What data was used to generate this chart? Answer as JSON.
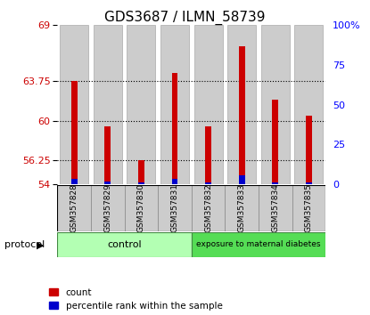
{
  "title": "GDS3687 / ILMN_58739",
  "samples": [
    "GSM357828",
    "GSM357829",
    "GSM357830",
    "GSM357831",
    "GSM357832",
    "GSM357833",
    "GSM357834",
    "GSM357835"
  ],
  "red_values": [
    63.75,
    59.5,
    56.25,
    64.5,
    59.5,
    67.0,
    62.0,
    60.5
  ],
  "blue_values": [
    54.5,
    54.3,
    54.2,
    54.5,
    54.2,
    54.85,
    54.2,
    54.2
  ],
  "base_value": 54.0,
  "ylim_left": [
    54,
    69
  ],
  "ylim_right": [
    0,
    100
  ],
  "yticks_left": [
    54,
    56.25,
    60,
    63.75,
    69
  ],
  "yticks_right": [
    0,
    25,
    50,
    75,
    100
  ],
  "ytick_labels_left": [
    "54",
    "56.25",
    "60",
    "63.75",
    "69"
  ],
  "ytick_labels_right": [
    "0",
    "25",
    "50",
    "75",
    "100%"
  ],
  "control_label": "control",
  "treatment_label": "exposure to maternal diabetes",
  "protocol_label": "protocol",
  "legend_red": "count",
  "legend_blue": "percentile rank within the sample",
  "control_color": "#b3ffb3",
  "treatment_color": "#55dd55",
  "bar_bg_color": "#cccccc",
  "red_color": "#cc0000",
  "blue_color": "#0000cc",
  "title_fontsize": 11,
  "tick_fontsize": 8,
  "sample_fontsize": 6.5,
  "legend_fontsize": 7.5
}
